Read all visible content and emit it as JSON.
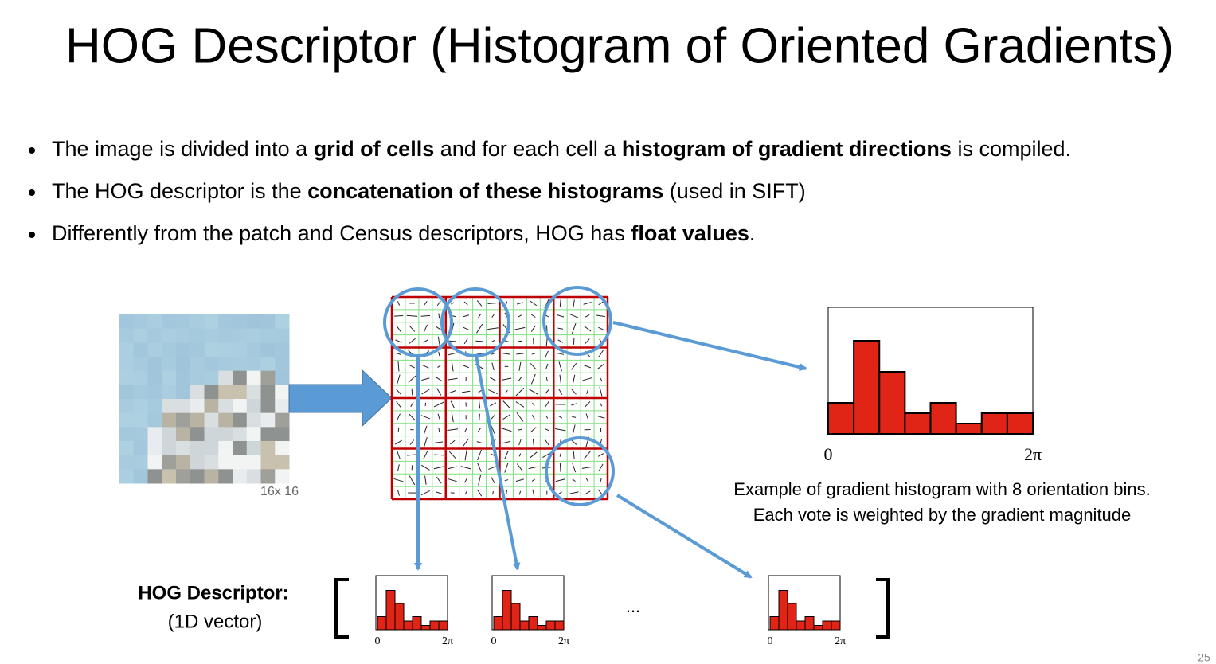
{
  "title": "HOG Descriptor (Histogram of Oriented Gradients)",
  "bullets": [
    [
      "The image is divided into a ",
      "grid of cells",
      " and for each cell a ",
      "histogram of gradient directions",
      " is compiled."
    ],
    [
      "The HOG descriptor is the ",
      "concatenation of these histograms",
      " (used in SIFT)"
    ],
    [
      "Differently from the patch and Census descriptors, HOG has ",
      "float values",
      "."
    ]
  ],
  "image_label": "16x 16",
  "histogram": {
    "values": [
      3,
      9,
      6,
      2,
      3,
      1,
      2,
      2
    ],
    "color": "#e02416",
    "x_start": "0",
    "x_end": "2π"
  },
  "caption": [
    "Example of gradient histogram with 8 orientation bins.",
    "Each vote is weighted by the gradient magnitude"
  ],
  "descriptor_label": [
    "HOG Descriptor:",
    "(1D vector)"
  ],
  "ellipsis": "...",
  "page_number": "25"
}
